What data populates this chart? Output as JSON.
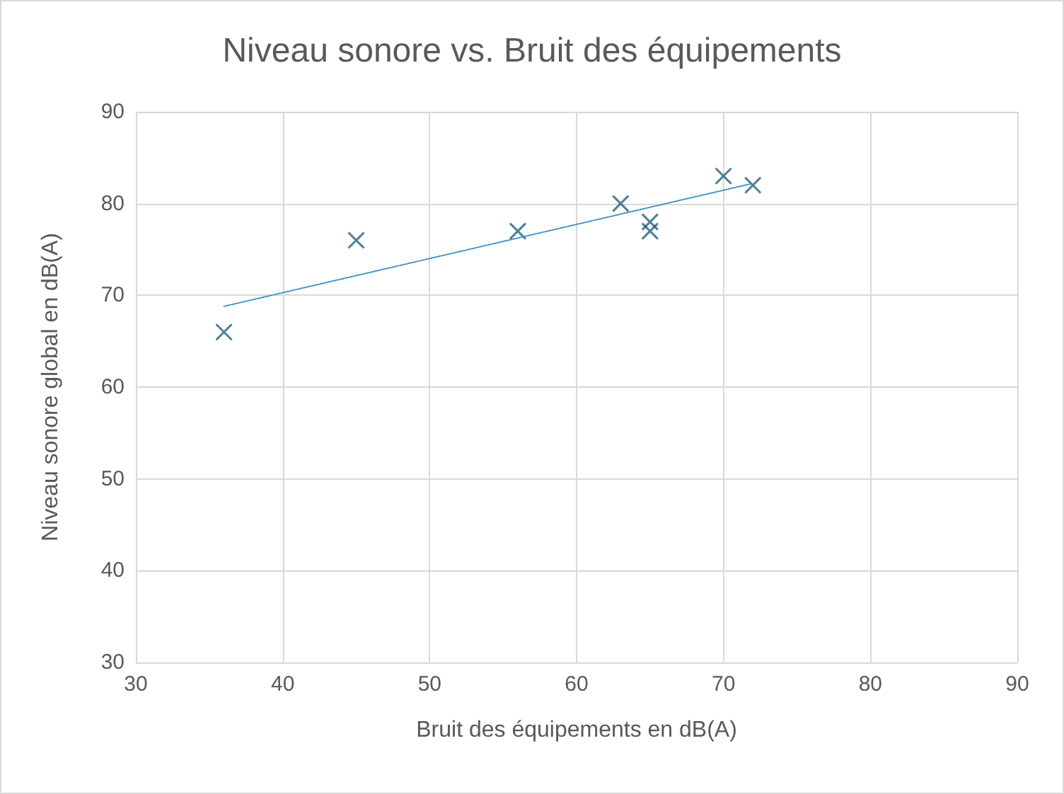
{
  "chart_data": {
    "type": "scatter",
    "title": "Niveau sonore vs. Bruit des équipements",
    "xlabel": "Bruit des équipements en dB(A)",
    "ylabel": "Niveau sonore global en dB(A)",
    "series": [
      {
        "type": "scatter",
        "color": "#215f7f",
        "marker": "cross",
        "x": [
          36,
          45,
          56,
          63,
          65,
          65,
          70,
          72
        ],
        "values": [
          66,
          76,
          77,
          80,
          78,
          77,
          83,
          82
        ]
      },
      {
        "type": "line",
        "color": "#3c8dc4",
        "line_style": "dotted",
        "marker": "none",
        "x": [
          36,
          72
        ],
        "values": [
          68.8,
          82.2
        ]
      }
    ],
    "xlim": [
      30,
      90
    ],
    "xticks": [
      30,
      40,
      50,
      60,
      70,
      80,
      90
    ],
    "ylim": [
      30,
      90
    ],
    "yticks": [
      30,
      40,
      50,
      60,
      70,
      80,
      90
    ],
    "grid": true
  }
}
